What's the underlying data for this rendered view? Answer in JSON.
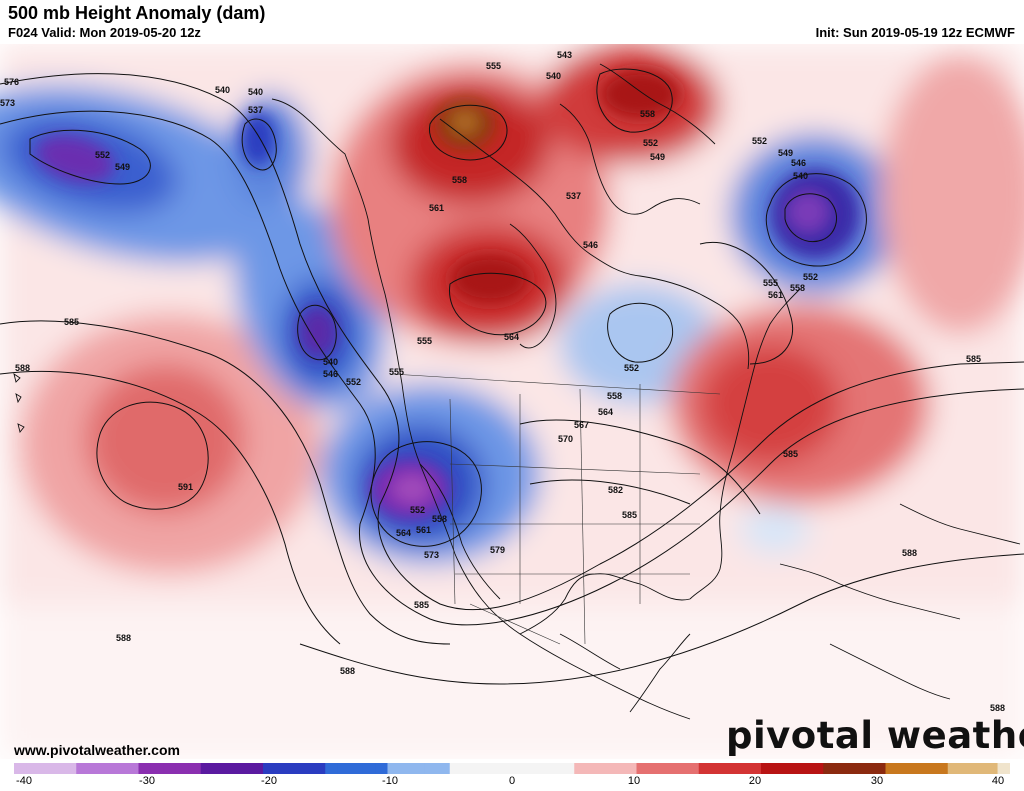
{
  "header": {
    "title": "500 mb Height Anomaly (dam)",
    "valid": "F024 Valid: Mon 2019-05-20 12z",
    "init": "Init: Sun 2019-05-19 12z ECMWF"
  },
  "footer": {
    "website": "www.pivotalweather.com",
    "logo_text": "pivotal weather"
  },
  "colorbar": {
    "min": -40,
    "max": 40,
    "ticks": [
      "-40",
      "-30",
      "-20",
      "-10",
      "0",
      "10",
      "20",
      "30",
      "40"
    ],
    "colors": {
      "neg40": "#d9b8e8",
      "neg30": "#b878d8",
      "neg25": "#8a2fb0",
      "neg20": "#5a1aa0",
      "neg15": "#2a3cc0",
      "neg10": "#2f6bd8",
      "neg5": "#8fb7ee",
      "zero": "#f4f4f4",
      "pos5": "#f4b8b8",
      "pos10": "#e57070",
      "pos15": "#d33434",
      "pos20": "#b81414",
      "pos25": "#8b2a10",
      "pos30": "#c8781e",
      "pos35": "#e0b878",
      "pos40": "#f0e4cc"
    }
  },
  "map": {
    "contour_labels": [
      "576",
      "573",
      "540",
      "540",
      "537",
      "552",
      "549",
      "555",
      "543",
      "540",
      "558",
      "552",
      "549",
      "552",
      "549",
      "546",
      "540",
      "552",
      "555",
      "558",
      "561",
      "537",
      "558",
      "561",
      "546",
      "564",
      "585",
      "588",
      "540",
      "546",
      "552",
      "555",
      "555",
      "552",
      "558",
      "564",
      "567",
      "570",
      "585",
      "585",
      "591",
      "552",
      "558",
      "561",
      "564",
      "573",
      "579",
      "582",
      "585",
      "588",
      "585",
      "588",
      "588",
      "588"
    ]
  }
}
